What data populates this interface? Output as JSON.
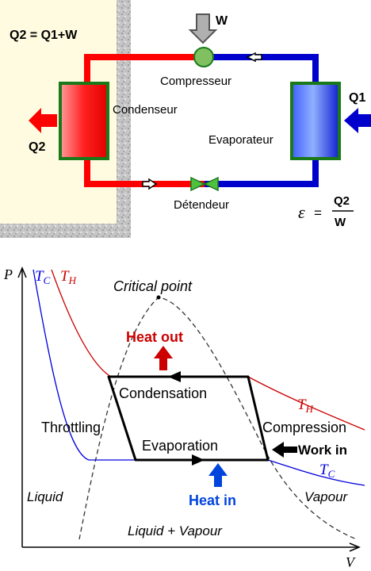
{
  "cycle": {
    "energy_balance": "Q2 = Q1+W",
    "work_label": "W",
    "compressor_label": "Compresseur",
    "condenser_label": "Condenseur",
    "evaporator_label": "Evaporateur",
    "expansion_label": "Détendeur",
    "heat_in_label": "Q1",
    "heat_out_label": "Q2",
    "cop_symbol": "ε",
    "cop_equals": "=",
    "cop_numerator": "Q2",
    "cop_denominator": "W",
    "colors": {
      "hot": "#ff0000",
      "cold": "#0000cc",
      "frame": "#1a7a1a",
      "compressor": "#80c060",
      "panel": "#fffbe0"
    }
  },
  "pv": {
    "y_axis": "P",
    "x_axis": "V",
    "tc_label_top": {
      "main": "T",
      "sub": "C"
    },
    "th_label_top": {
      "main": "T",
      "sub": "H"
    },
    "th_label_right": {
      "main": "T",
      "sub": "H"
    },
    "tc_label_right": {
      "main": "T",
      "sub": "C"
    },
    "critical_point": "Critical point",
    "heat_out": "Heat out",
    "heat_in": "Heat in",
    "condensation": "Condensation",
    "evaporation": "Evaporation",
    "throttling": "Throttling",
    "compression": "Compression",
    "work_in": "Work in",
    "liquid": "Liquid",
    "vapour": "Vapour",
    "mixture": "Liquid + Vapour",
    "colors": {
      "hot_isotherm": "#cc0000",
      "cold_isotherm": "#0000dd",
      "heat_out": "#cc0000",
      "heat_in": "#0044dd"
    }
  }
}
